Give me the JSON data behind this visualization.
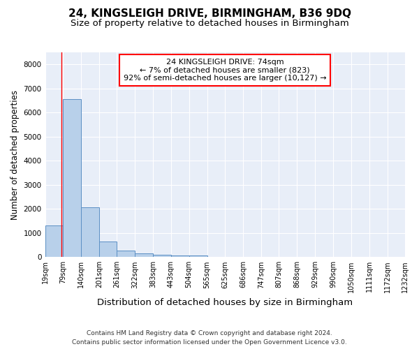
{
  "title1": "24, KINGSLEIGH DRIVE, BIRMINGHAM, B36 9DQ",
  "title2": "Size of property relative to detached houses in Birmingham",
  "xlabel": "Distribution of detached houses by size in Birmingham",
  "ylabel": "Number of detached properties",
  "footnote1": "Contains HM Land Registry data © Crown copyright and database right 2024.",
  "footnote2": "Contains public sector information licensed under the Open Government Licence v3.0.",
  "annotation_line1": "24 KINGSLEIGH DRIVE: 74sqm",
  "annotation_line2": "← 7% of detached houses are smaller (823)",
  "annotation_line3": "92% of semi-detached houses are larger (10,127) →",
  "bar_left_edges": [
    19,
    79,
    140,
    201,
    261,
    322,
    383,
    443,
    504,
    565,
    625,
    686,
    747,
    807,
    868,
    929,
    990,
    1050,
    1111,
    1172
  ],
  "bar_widths": [
    60,
    61,
    61,
    60,
    61,
    61,
    60,
    61,
    61,
    60,
    61,
    61,
    60,
    61,
    61,
    61,
    60,
    61,
    61,
    60
  ],
  "bar_heights": [
    1300,
    6550,
    2080,
    650,
    280,
    145,
    95,
    65,
    65,
    0,
    0,
    0,
    0,
    0,
    0,
    0,
    0,
    0,
    0,
    0
  ],
  "tick_labels": [
    "19sqm",
    "79sqm",
    "140sqm",
    "201sqm",
    "261sqm",
    "322sqm",
    "383sqm",
    "443sqm",
    "504sqm",
    "565sqm",
    "625sqm",
    "686sqm",
    "747sqm",
    "807sqm",
    "868sqm",
    "929sqm",
    "990sqm",
    "1050sqm",
    "1111sqm",
    "1172sqm",
    "1232sqm"
  ],
  "bar_color": "#b8d0ea",
  "bar_edge_color": "#5b8fc4",
  "property_line_x": 74,
  "ylim": [
    0,
    8500
  ],
  "yticks": [
    0,
    1000,
    2000,
    3000,
    4000,
    5000,
    6000,
    7000,
    8000
  ],
  "background_color": "#e8eef8",
  "grid_color": "#ffffff",
  "title1_fontsize": 11,
  "title2_fontsize": 9.5,
  "axis_label_fontsize": 8.5,
  "tick_fontsize": 7,
  "annotation_fontsize": 8,
  "footnote_fontsize": 6.5
}
